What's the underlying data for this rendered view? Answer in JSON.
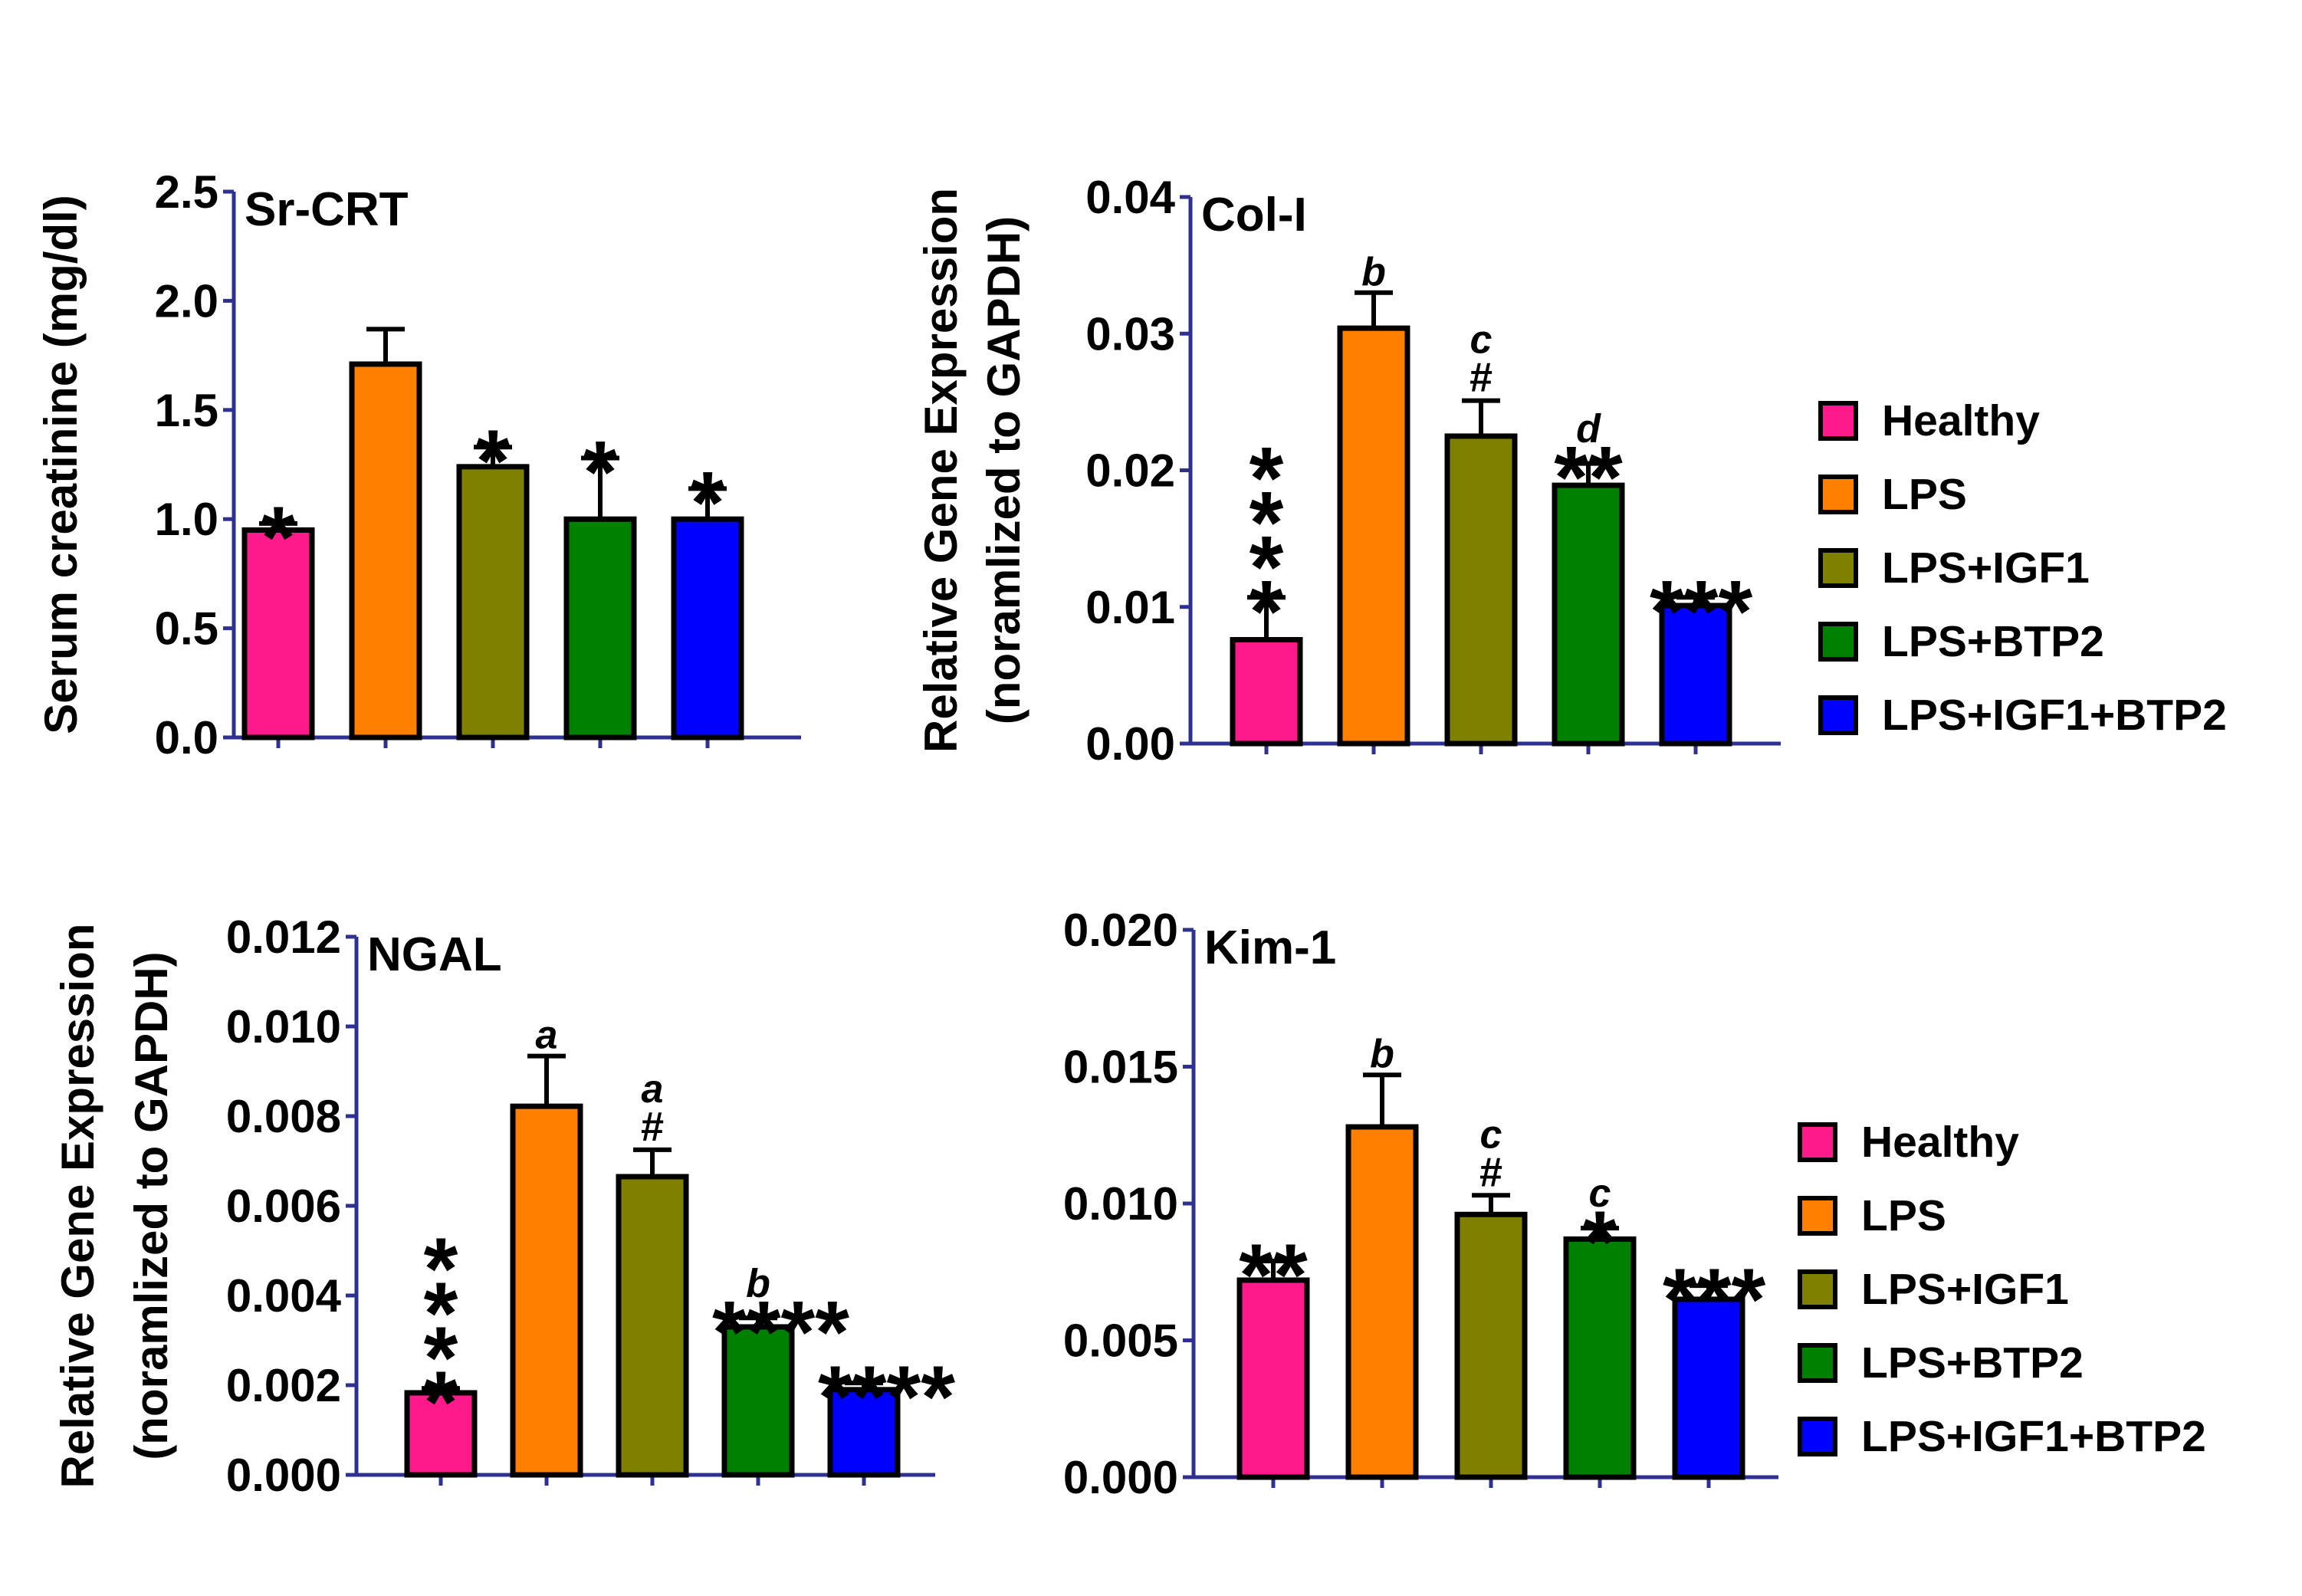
{
  "legend": {
    "items": [
      {
        "label": "Healthy",
        "color": "#ff1a8c"
      },
      {
        "label": "LPS",
        "color": "#ff8000"
      },
      {
        "label": "LPS+IGF1",
        "color": "#808000"
      },
      {
        "label": "LPS+BTP2",
        "color": "#008000"
      },
      {
        "label": "LPS+IGF1+BTP2",
        "color": "#0000ff"
      }
    ]
  },
  "chart_data": [
    {
      "type": "bar",
      "title": "Sr-CRT",
      "ylabel": "Serum creatinine (mg/dl)",
      "xlabel": "",
      "ylim": [
        0,
        2.5
      ],
      "yticks": [
        "0.0",
        "0.5",
        "1.0",
        "1.5",
        "2.0",
        "2.5"
      ],
      "categories": [
        "Healthy",
        "LPS",
        "LPS+IGF1",
        "LPS+BTP2",
        "LPS+IGF1+BTP2"
      ],
      "values": [
        0.95,
        1.71,
        1.24,
        1.0,
        1.0
      ],
      "errors": [
        0.03,
        0.16,
        0.09,
        0.28,
        0.14
      ],
      "annotations": [
        {
          "stars": "*",
          "letter": "",
          "hash": ""
        },
        {
          "stars": "",
          "letter": "",
          "hash": ""
        },
        {
          "stars": "*",
          "letter": "",
          "hash": ""
        },
        {
          "stars": "*",
          "letter": "",
          "hash": ""
        },
        {
          "stars": "*",
          "letter": "",
          "hash": ""
        }
      ]
    },
    {
      "type": "bar",
      "title": "Col-I",
      "ylabel": "Relative Gene Expression",
      "ylabel2": "(noramlized to GAPDH)",
      "xlabel": "",
      "ylim": [
        0,
        0.04
      ],
      "yticks": [
        "0.00",
        "0.01",
        "0.02",
        "0.03",
        "0.04"
      ],
      "categories": [
        "Healthy",
        "LPS",
        "LPS+IGF1",
        "LPS+BTP2",
        "LPS+IGF1+BTP2"
      ],
      "values": [
        0.0076,
        0.0304,
        0.0225,
        0.0189,
        0.0101
      ],
      "errors": [
        0.0031,
        0.0026,
        0.0026,
        0.0016,
        0.0006
      ],
      "annotations": [
        {
          "stars": "****",
          "letter": "",
          "hash": "",
          "vertical": true
        },
        {
          "stars": "",
          "letter": "b",
          "hash": ""
        },
        {
          "stars": "",
          "letter": "c",
          "hash": "#"
        },
        {
          "stars": "**",
          "letter": "d",
          "hash": ""
        },
        {
          "stars": "***",
          "letter": "",
          "hash": ""
        }
      ]
    },
    {
      "type": "bar",
      "title": "NGAL",
      "ylabel": "Relative Gene Expression",
      "ylabel2": "(noramlized to GAPDH)",
      "xlabel": "",
      "ylim": [
        0,
        0.012
      ],
      "yticks": [
        "0.000",
        "0.002",
        "0.004",
        "0.006",
        "0.008",
        "0.010",
        "0.012"
      ],
      "categories": [
        "Healthy",
        "LPS",
        "LPS+IGF1",
        "LPS+BTP2",
        "LPS+IGF1+BTP2"
      ],
      "values": [
        0.00183,
        0.00822,
        0.00665,
        0.0033,
        0.0019
      ],
      "errors": [
        0.0001,
        0.00112,
        0.0006,
        0.0002,
        0.00015
      ],
      "annotations": [
        {
          "stars": "****",
          "letter": "",
          "hash": "",
          "vertical": true
        },
        {
          "stars": "",
          "letter": "a",
          "hash": ""
        },
        {
          "stars": "",
          "letter": "a",
          "hash": "#"
        },
        {
          "stars": "****",
          "letter": "b",
          "hash": ""
        },
        {
          "stars": "****",
          "letter": "",
          "hash": ""
        }
      ]
    },
    {
      "type": "bar",
      "title": "Kim-1",
      "ylabel": "",
      "xlabel": "",
      "ylim": [
        0,
        0.02
      ],
      "yticks": [
        "0.000",
        "0.005",
        "0.010",
        "0.015",
        "0.020"
      ],
      "categories": [
        "Healthy",
        "LPS",
        "LPS+IGF1",
        "LPS+BTP2",
        "LPS+IGF1+BTP2"
      ],
      "values": [
        0.0072,
        0.0128,
        0.0096,
        0.0087,
        0.0065
      ],
      "errors": [
        0.0007,
        0.0019,
        0.0007,
        0.0004,
        0.0005
      ],
      "annotations": [
        {
          "stars": "**",
          "letter": "",
          "hash": ""
        },
        {
          "stars": "",
          "letter": "b",
          "hash": ""
        },
        {
          "stars": "",
          "letter": "c",
          "hash": "#"
        },
        {
          "stars": "*",
          "letter": "c",
          "hash": ""
        },
        {
          "stars": "***",
          "letter": "",
          "hash": ""
        }
      ]
    }
  ]
}
